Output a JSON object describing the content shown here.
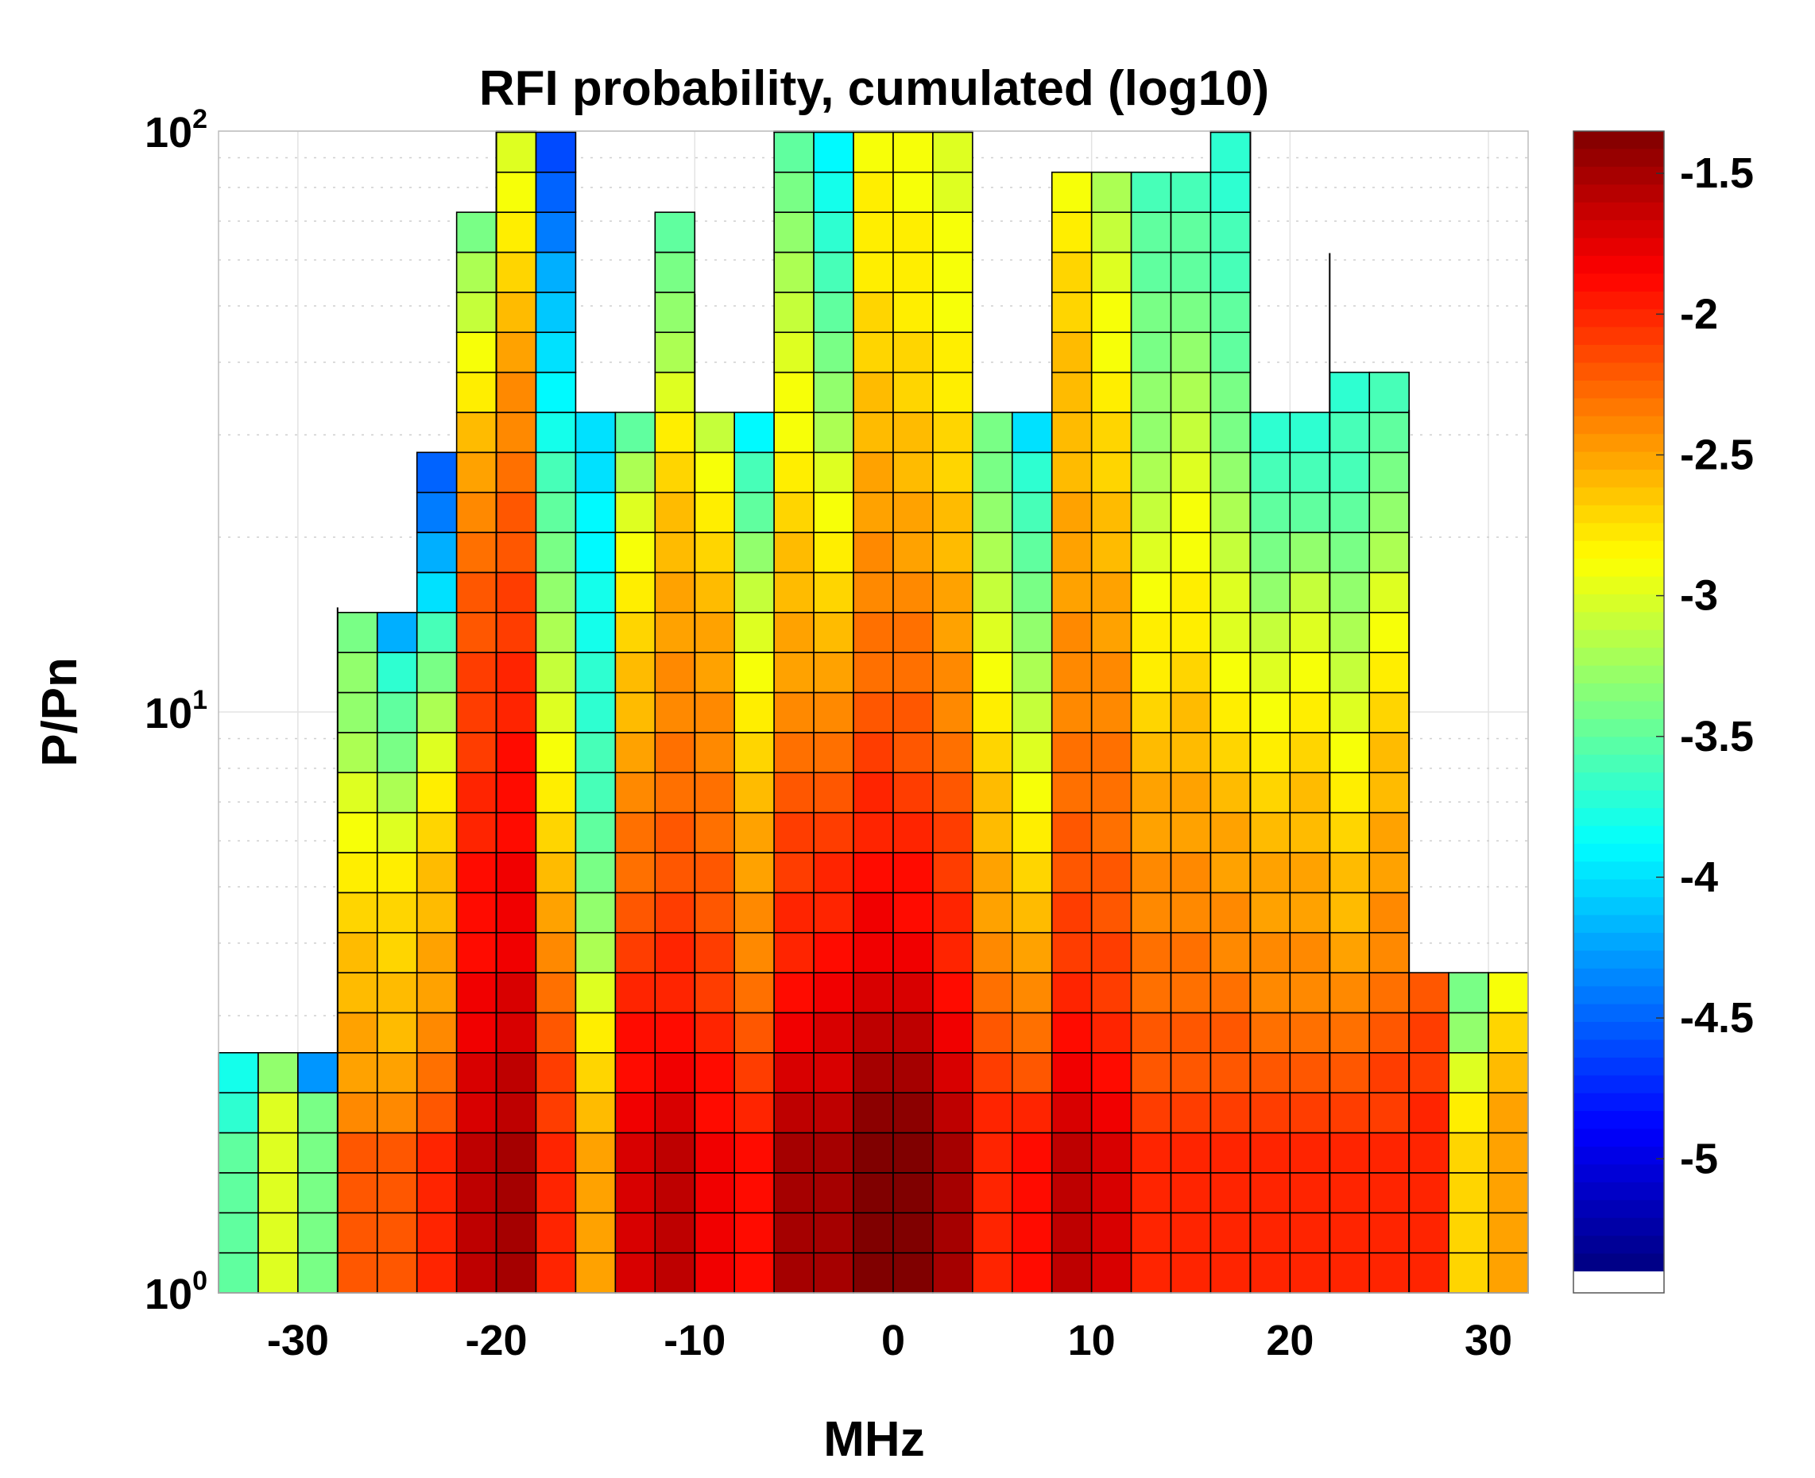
{
  "chart_data": {
    "type": "heatmap",
    "title": "RFI probability, cumulated (log10)",
    "xlabel": "MHz",
    "ylabel": "P/Pn",
    "xlim": [
      -34,
      32
    ],
    "ylim_log10": [
      0,
      2
    ],
    "x_ticks": [
      "-30",
      "-20",
      "-10",
      "0",
      "10",
      "20",
      "30"
    ],
    "y_ticks": [
      {
        "base": "10",
        "exp": "0"
      },
      {
        "base": "10",
        "exp": "1"
      },
      {
        "base": "10",
        "exp": "2"
      }
    ],
    "colorbar": {
      "range": [
        -5.4,
        -1.35
      ],
      "ticks": [
        "-1.5",
        "-2",
        "-2.5",
        "-3",
        "-3.5",
        "-4",
        "-4.5",
        "-5"
      ],
      "colormap": "jet"
    },
    "bin_width_mhz": 2,
    "bin_height_log10": 0.0689,
    "columns": [
      {
        "x": -33,
        "values": [
          -3.5,
          -3.5,
          -3.5,
          -3.5,
          -3.7,
          -3.8
        ]
      },
      {
        "x": -31,
        "values": [
          -3.0,
          -3.0,
          -3.0,
          -3.0,
          -3.0,
          -3.3
        ]
      },
      {
        "x": -29,
        "values": [
          -3.4,
          -3.4,
          -3.4,
          -3.4,
          -3.4,
          -4.3
        ]
      },
      {
        "x": -27,
        "values": [
          -2.2,
          -2.2,
          -2.2,
          -2.2,
          -2.4,
          -2.5,
          -2.5,
          -2.6,
          -2.6,
          -2.7,
          -2.8,
          -2.9,
          -3.0,
          -3.2,
          -3.3,
          -3.3,
          -3.4
        ]
      },
      {
        "x": -25,
        "values": [
          -2.2,
          -2.2,
          -2.2,
          -2.2,
          -2.4,
          -2.5,
          -2.6,
          -2.6,
          -2.7,
          -2.7,
          -2.8,
          -3.0,
          -3.2,
          -3.4,
          -3.5,
          -3.7,
          -4.2
        ]
      },
      {
        "x": -23,
        "values": [
          -2.0,
          -2.0,
          -2.0,
          -2.0,
          -2.2,
          -2.3,
          -2.4,
          -2.5,
          -2.5,
          -2.6,
          -2.6,
          -2.7,
          -2.8,
          -3.0,
          -3.2,
          -3.4,
          -3.6,
          -4.0,
          -4.2,
          -4.4,
          -4.5
        ]
      },
      {
        "x": -21,
        "values": [
          -1.6,
          -1.6,
          -1.6,
          -1.6,
          -1.7,
          -1.7,
          -1.8,
          -1.8,
          -1.9,
          -1.9,
          -1.9,
          -2.0,
          -2.0,
          -2.1,
          -2.1,
          -2.1,
          -2.2,
          -2.2,
          -2.3,
          -2.4,
          -2.5,
          -2.6,
          -2.8,
          -2.9,
          -3.1,
          -3.2,
          -3.4
        ]
      },
      {
        "x": -19,
        "values": [
          -1.5,
          -1.5,
          -1.5,
          -1.5,
          -1.6,
          -1.6,
          -1.7,
          -1.7,
          -1.8,
          -1.8,
          -1.8,
          -1.9,
          -1.9,
          -1.9,
          -2.0,
          -2.0,
          -2.1,
          -2.1,
          -2.2,
          -2.2,
          -2.3,
          -2.4,
          -2.4,
          -2.5,
          -2.6,
          -2.7,
          -2.8,
          -2.9,
          -3.0,
          -3.1
        ]
      },
      {
        "x": -17,
        "values": [
          -2.0,
          -2.0,
          -2.0,
          -2.0,
          -2.1,
          -2.1,
          -2.2,
          -2.3,
          -2.4,
          -2.5,
          -2.6,
          -2.7,
          -2.8,
          -2.9,
          -3.0,
          -3.1,
          -3.2,
          -3.3,
          -3.4,
          -3.5,
          -3.6,
          -3.8,
          -3.9,
          -4.0,
          -4.1,
          -4.2,
          -4.4,
          -4.5,
          -4.6
        ]
      },
      {
        "x": -15,
        "values": [
          -2.5,
          -2.5,
          -2.5,
          -2.5,
          -2.6,
          -2.7,
          -2.8,
          -3.0,
          -3.2,
          -3.3,
          -3.4,
          -3.5,
          -3.6,
          -3.6,
          -3.7,
          -3.7,
          -3.8,
          -3.8,
          -3.9,
          -3.9,
          -4.0,
          -4.0
        ]
      },
      {
        "x": -13,
        "values": [
          -1.7,
          -1.7,
          -1.7,
          -1.7,
          -1.8,
          -1.9,
          -1.9,
          -2.0,
          -2.1,
          -2.2,
          -2.3,
          -2.3,
          -2.4,
          -2.5,
          -2.6,
          -2.6,
          -2.7,
          -2.8,
          -2.9,
          -3.0,
          -3.2,
          -3.5
        ]
      },
      {
        "x": -11,
        "values": [
          -1.6,
          -1.6,
          -1.6,
          -1.6,
          -1.7,
          -1.8,
          -1.9,
          -2.0,
          -2.0,
          -2.1,
          -2.2,
          -2.2,
          -2.3,
          -2.3,
          -2.4,
          -2.4,
          -2.5,
          -2.5,
          -2.6,
          -2.6,
          -2.7,
          -2.8,
          -3.0,
          -3.2,
          -3.3,
          -3.4,
          -3.5
        ]
      },
      {
        "x": -9,
        "values": [
          -1.8,
          -1.8,
          -1.8,
          -1.8,
          -1.9,
          -1.9,
          -2.0,
          -2.1,
          -2.1,
          -2.2,
          -2.2,
          -2.3,
          -2.3,
          -2.4,
          -2.4,
          -2.5,
          -2.5,
          -2.6,
          -2.7,
          -2.8,
          -2.9,
          -3.1
        ]
      },
      {
        "x": -7,
        "values": [
          -1.9,
          -1.9,
          -1.9,
          -1.9,
          -2.0,
          -2.1,
          -2.2,
          -2.3,
          -2.4,
          -2.4,
          -2.5,
          -2.5,
          -2.6,
          -2.7,
          -2.8,
          -2.9,
          -3.0,
          -3.1,
          -3.3,
          -3.5,
          -3.6,
          -3.9
        ]
      },
      {
        "x": -5,
        "values": [
          -1.5,
          -1.5,
          -1.5,
          -1.5,
          -1.6,
          -1.7,
          -1.8,
          -1.9,
          -2.0,
          -2.0,
          -2.1,
          -2.1,
          -2.2,
          -2.3,
          -2.4,
          -2.5,
          -2.5,
          -2.6,
          -2.6,
          -2.7,
          -2.8,
          -2.9,
          -2.9,
          -3.0,
          -3.1,
          -3.2,
          -3.3,
          -3.4,
          -3.5,
          -3.6
        ]
      },
      {
        "x": -3,
        "values": [
          -1.5,
          -1.5,
          -1.5,
          -1.5,
          -1.6,
          -1.7,
          -1.7,
          -1.8,
          -1.9,
          -2.0,
          -2.0,
          -2.1,
          -2.2,
          -2.3,
          -2.4,
          -2.5,
          -2.6,
          -2.7,
          -2.8,
          -2.9,
          -3.0,
          -3.2,
          -3.3,
          -3.4,
          -3.5,
          -3.6,
          -3.7,
          -3.8,
          -3.9,
          -4.0
        ]
      },
      {
        "x": -1,
        "values": [
          -1.3,
          -1.3,
          -1.3,
          -1.3,
          -1.4,
          -1.5,
          -1.6,
          -1.7,
          -1.8,
          -1.8,
          -1.9,
          -2.0,
          -2.0,
          -2.1,
          -2.2,
          -2.3,
          -2.3,
          -2.4,
          -2.4,
          -2.5,
          -2.5,
          -2.6,
          -2.6,
          -2.7,
          -2.7,
          -2.8,
          -2.8,
          -2.8,
          -2.9,
          -2.9
        ]
      },
      {
        "x": 1,
        "values": [
          -1.3,
          -1.3,
          -1.3,
          -1.3,
          -1.4,
          -1.5,
          -1.6,
          -1.7,
          -1.8,
          -1.9,
          -1.9,
          -2.0,
          -2.1,
          -2.2,
          -2.2,
          -2.3,
          -2.3,
          -2.4,
          -2.5,
          -2.5,
          -2.6,
          -2.6,
          -2.7,
          -2.7,
          -2.8,
          -2.8,
          -2.8,
          -2.9,
          -2.9,
          -2.9
        ]
      },
      {
        "x": 3,
        "values": [
          -1.5,
          -1.5,
          -1.5,
          -1.5,
          -1.6,
          -1.7,
          -1.8,
          -1.9,
          -2.0,
          -2.0,
          -2.1,
          -2.1,
          -2.2,
          -2.3,
          -2.4,
          -2.4,
          -2.5,
          -2.5,
          -2.6,
          -2.6,
          -2.7,
          -2.7,
          -2.8,
          -2.8,
          -2.9,
          -2.9,
          -2.9,
          -3.0,
          -3.0,
          -3.0
        ]
      },
      {
        "x": 5,
        "values": [
          -2.0,
          -2.0,
          -2.0,
          -2.0,
          -2.0,
          -2.1,
          -2.2,
          -2.3,
          -2.4,
          -2.5,
          -2.5,
          -2.6,
          -2.6,
          -2.7,
          -2.8,
          -2.9,
          -3.0,
          -3.1,
          -3.2,
          -3.3,
          -3.4,
          -3.4
        ]
      },
      {
        "x": 7,
        "values": [
          -1.9,
          -1.9,
          -1.9,
          -1.9,
          -2.0,
          -2.2,
          -2.3,
          -2.4,
          -2.5,
          -2.6,
          -2.7,
          -2.8,
          -2.9,
          -3.0,
          -3.1,
          -3.2,
          -3.3,
          -3.4,
          -3.5,
          -3.6,
          -3.7,
          -4.0
        ]
      },
      {
        "x": 9,
        "values": [
          -1.6,
          -1.6,
          -1.6,
          -1.6,
          -1.7,
          -1.8,
          -1.9,
          -2.0,
          -2.1,
          -2.1,
          -2.2,
          -2.2,
          -2.3,
          -2.3,
          -2.4,
          -2.4,
          -2.4,
          -2.5,
          -2.5,
          -2.5,
          -2.6,
          -2.6,
          -2.6,
          -2.6,
          -2.7,
          -2.7,
          -2.8,
          -2.9
        ]
      },
      {
        "x": 11,
        "values": [
          -1.7,
          -1.7,
          -1.7,
          -1.7,
          -1.8,
          -1.9,
          -2.0,
          -2.1,
          -2.1,
          -2.2,
          -2.2,
          -2.3,
          -2.3,
          -2.3,
          -2.4,
          -2.4,
          -2.5,
          -2.5,
          -2.6,
          -2.6,
          -2.7,
          -2.7,
          -2.8,
          -2.9,
          -2.9,
          -3.0,
          -3.1,
          -3.2
        ]
      },
      {
        "x": 13,
        "values": [
          -2.0,
          -2.0,
          -2.0,
          -2.0,
          -2.1,
          -2.2,
          -2.2,
          -2.3,
          -2.3,
          -2.4,
          -2.4,
          -2.5,
          -2.5,
          -2.6,
          -2.7,
          -2.8,
          -2.8,
          -2.9,
          -3.0,
          -3.1,
          -3.2,
          -3.3,
          -3.3,
          -3.4,
          -3.4,
          -3.5,
          -3.5,
          -3.6
        ]
      },
      {
        "x": 15,
        "values": [
          -2.0,
          -2.0,
          -2.0,
          -2.0,
          -2.1,
          -2.2,
          -2.2,
          -2.3,
          -2.3,
          -2.4,
          -2.4,
          -2.5,
          -2.5,
          -2.6,
          -2.6,
          -2.7,
          -2.8,
          -2.8,
          -2.9,
          -2.9,
          -3.0,
          -3.1,
          -3.2,
          -3.3,
          -3.4,
          -3.5,
          -3.5,
          -3.6
        ]
      },
      {
        "x": 17,
        "values": [
          -2.0,
          -2.0,
          -2.0,
          -2.0,
          -2.1,
          -2.2,
          -2.2,
          -2.3,
          -2.4,
          -2.4,
          -2.5,
          -2.5,
          -2.6,
          -2.7,
          -2.8,
          -2.9,
          -3.0,
          -3.0,
          -3.1,
          -3.2,
          -3.3,
          -3.4,
          -3.4,
          -3.5,
          -3.5,
          -3.6,
          -3.6,
          -3.7,
          -3.7,
          -3.8
        ]
      },
      {
        "x": 19,
        "values": [
          -2.0,
          -2.0,
          -2.0,
          -2.0,
          -2.1,
          -2.2,
          -2.3,
          -2.4,
          -2.4,
          -2.5,
          -2.5,
          -2.6,
          -2.7,
          -2.8,
          -2.9,
          -3.0,
          -3.1,
          -3.3,
          -3.4,
          -3.5,
          -3.6,
          -3.7
        ]
      },
      {
        "x": 21,
        "values": [
          -2.0,
          -2.0,
          -2.0,
          -2.0,
          -2.1,
          -2.2,
          -2.3,
          -2.4,
          -2.4,
          -2.5,
          -2.5,
          -2.6,
          -2.6,
          -2.7,
          -2.8,
          -2.9,
          -3.0,
          -3.1,
          -3.3,
          -3.5,
          -3.6,
          -3.7
        ]
      },
      {
        "x": 23,
        "values": [
          -2.0,
          -2.0,
          -2.0,
          -2.0,
          -2.1,
          -2.2,
          -2.3,
          -2.4,
          -2.5,
          -2.6,
          -2.6,
          -2.7,
          -2.8,
          -2.9,
          -3.0,
          -3.1,
          -3.2,
          -3.3,
          -3.4,
          -3.5,
          -3.6,
          -3.6,
          -3.7
        ]
      },
      {
        "x": 25,
        "values": [
          -2.0,
          -2.0,
          -2.0,
          -2.0,
          -2.1,
          -2.1,
          -2.2,
          -2.3,
          -2.4,
          -2.4,
          -2.5,
          -2.5,
          -2.6,
          -2.6,
          -2.7,
          -2.8,
          -2.9,
          -3.0,
          -3.2,
          -3.3,
          -3.4,
          -3.5,
          -3.6
        ]
      },
      {
        "x": 27,
        "values": [
          -2.0,
          -2.0,
          -2.0,
          -2.0,
          -2.0,
          -2.1,
          -2.1,
          -2.2
        ]
      },
      {
        "x": 29,
        "values": [
          -2.7,
          -2.7,
          -2.7,
          -2.7,
          -2.8,
          -3.0,
          -3.3,
          -3.4
        ]
      },
      {
        "x": 31,
        "values": [
          -2.5,
          -2.5,
          -2.5,
          -2.5,
          -2.5,
          -2.6,
          -2.7,
          -2.9
        ]
      }
    ],
    "spikes": [
      {
        "x": -28,
        "top_log10": 1.18
      },
      {
        "x": -20,
        "top_log10": 2.0
      },
      {
        "x": -10,
        "top_log10": 1.72
      },
      {
        "x": 18,
        "top_log10": 2.0
      },
      {
        "x": 22,
        "top_log10": 1.79
      },
      {
        "x": 26,
        "top_log10": 1.52
      },
      {
        "x": 30,
        "top_log10": 0.55
      }
    ]
  }
}
